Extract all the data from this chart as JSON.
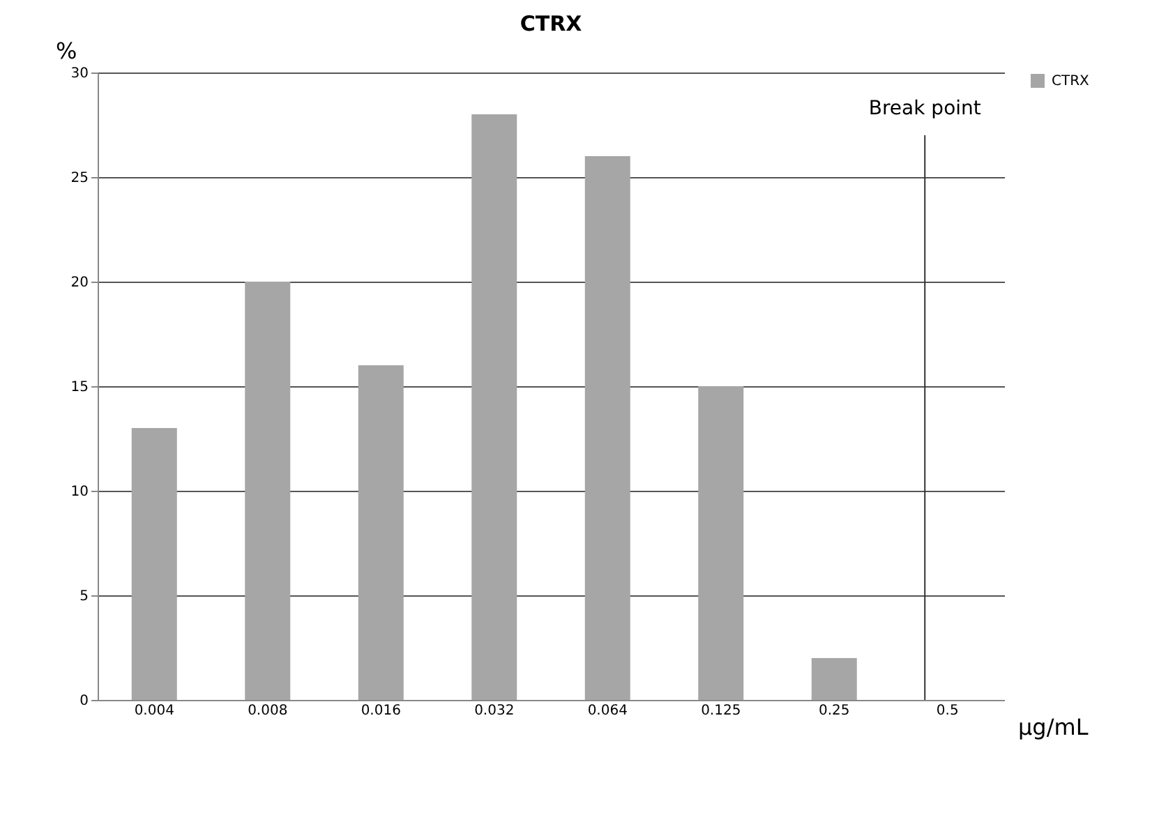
{
  "chart_data": {
    "type": "bar",
    "title": "CTRX",
    "ylabel": "%",
    "xlabel": "µg/mL",
    "categories": [
      "0.004",
      "0.008",
      "0.016",
      "0.032",
      "0.064",
      "0.125",
      "0.25",
      "0.5"
    ],
    "series": [
      {
        "name": "CTRX",
        "color": "#a6a6a6",
        "values": [
          13,
          20,
          16,
          28,
          26,
          15,
          2,
          0
        ]
      }
    ],
    "ylim": [
      0,
      30
    ],
    "yticks": [
      0,
      5,
      10,
      15,
      20,
      25,
      30
    ],
    "grid": "y",
    "legend": "right",
    "ref_lines": [
      {
        "axis": "x",
        "value": "0.5",
        "label": "Break point",
        "color": "#333333"
      }
    ]
  }
}
